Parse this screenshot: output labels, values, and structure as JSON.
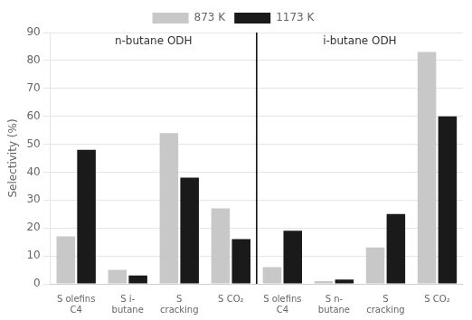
{
  "chart_data": {
    "type": "bar",
    "ylabel": "Selectivity (%)",
    "categories": [
      "S olefins\nC4",
      "S i-\nbutane",
      "S\ncracking",
      "S CO₂",
      "S olefins\nC4",
      "S n-\nbutane",
      "S\ncracking",
      "S CO₂"
    ],
    "series": [
      {
        "name": "873 K",
        "color": "#c8c8c8",
        "values": [
          17,
          5,
          54,
          27,
          6,
          1,
          13,
          83
        ]
      },
      {
        "name": "1173 K",
        "color": "#1a1a1a",
        "values": [
          48,
          3,
          38,
          16,
          19,
          1.5,
          25,
          60
        ]
      }
    ],
    "annotations": [
      "n-butane ODH",
      "i-butane ODH"
    ],
    "ylim": [
      0,
      90
    ],
    "yticks": [
      0,
      10,
      20,
      30,
      40,
      50,
      60,
      70,
      80,
      90
    ],
    "grid": true,
    "legend": "top"
  }
}
